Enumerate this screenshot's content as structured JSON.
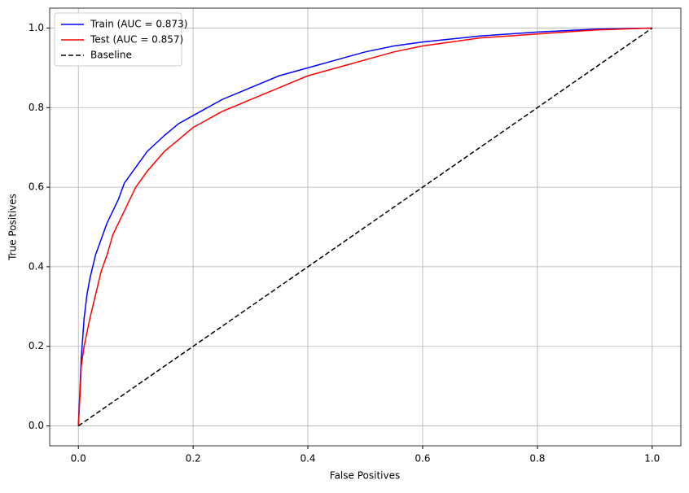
{
  "chart_data": {
    "type": "line",
    "xlabel": "False Positives",
    "ylabel": "True Positives",
    "xlim": [
      -0.05,
      1.05
    ],
    "ylim": [
      -0.05,
      1.05
    ],
    "xticks": [
      {
        "value": 0,
        "label": "0.0"
      },
      0.2,
      0.4,
      0.6,
      0.8,
      {
        "value": 1,
        "label": "1.0"
      }
    ],
    "yticks": [
      {
        "value": 0,
        "label": "0.0"
      },
      0.2,
      0.4,
      0.6,
      0.8,
      {
        "value": 1,
        "label": "1.0"
      }
    ],
    "grid": true,
    "legend": "upper left",
    "series": [
      {
        "name": "Train (AUC = 0.873)",
        "color": "#0000ff",
        "linestyle": "solid",
        "x": [
          0,
          0.003,
          0.005,
          0.01,
          0.015,
          0.02,
          0.03,
          0.04,
          0.05,
          0.06,
          0.07,
          0.08,
          0.1,
          0.12,
          0.15,
          0.175,
          0.2,
          0.25,
          0.3,
          0.35,
          0.4,
          0.45,
          0.5,
          0.55,
          0.6,
          0.7,
          0.8,
          0.9,
          1
        ],
        "values": [
          0,
          0.1,
          0.17,
          0.27,
          0.33,
          0.37,
          0.43,
          0.47,
          0.51,
          0.54,
          0.57,
          0.61,
          0.65,
          0.69,
          0.73,
          0.76,
          0.78,
          0.82,
          0.85,
          0.88,
          0.9,
          0.92,
          0.94,
          0.955,
          0.965,
          0.98,
          0.99,
          0.997,
          1
        ]
      },
      {
        "name": "Test (AUC = 0.857)",
        "color": "#ff0000",
        "linestyle": "solid",
        "x": [
          0,
          0.003,
          0.005,
          0.01,
          0.02,
          0.03,
          0.04,
          0.05,
          0.06,
          0.07,
          0.08,
          0.1,
          0.12,
          0.15,
          0.175,
          0.2,
          0.25,
          0.3,
          0.35,
          0.4,
          0.45,
          0.5,
          0.55,
          0.6,
          0.7,
          0.8,
          0.9,
          1
        ],
        "values": [
          0,
          0.08,
          0.15,
          0.2,
          0.27,
          0.33,
          0.39,
          0.43,
          0.48,
          0.51,
          0.54,
          0.6,
          0.64,
          0.69,
          0.72,
          0.75,
          0.79,
          0.82,
          0.85,
          0.88,
          0.9,
          0.92,
          0.94,
          0.955,
          0.975,
          0.985,
          0.995,
          1
        ]
      },
      {
        "name": "Baseline",
        "color": "#000000",
        "linestyle": "dashed",
        "x": [
          0,
          1
        ],
        "values": [
          0,
          1
        ]
      }
    ]
  }
}
